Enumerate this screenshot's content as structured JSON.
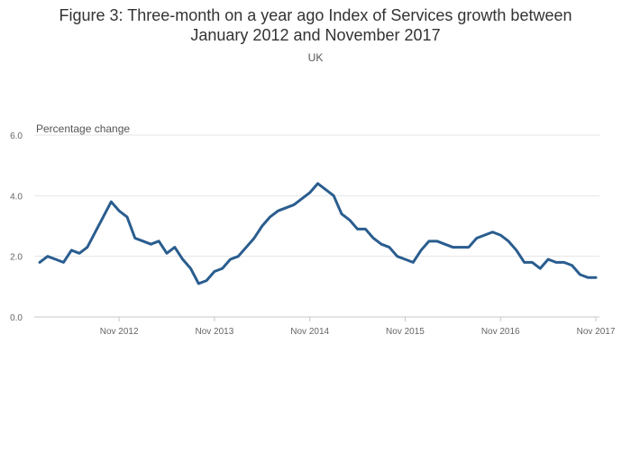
{
  "chart_data": {
    "type": "line",
    "title_lines": [
      "Figure 3: Three-month on a year ago Index of Services growth between",
      "January 2012 and November 2017"
    ],
    "subtitle": "UK",
    "ylabel": "Percentage change",
    "xlabel": "",
    "ylim": [
      0,
      6
    ],
    "y_ticks": [
      "0.0",
      "2.0",
      "4.0",
      "6.0"
    ],
    "y_tick_values": [
      0,
      2,
      4,
      6
    ],
    "x_tick_labels": [
      "Nov 2012",
      "Nov 2013",
      "Nov 2014",
      "Nov 2015",
      "Nov 2016",
      "Nov 2017"
    ],
    "x_tick_index": [
      10,
      22,
      34,
      46,
      58,
      70
    ],
    "grid": true,
    "line_color": "#2a5d8f",
    "series": [
      {
        "name": "Three-month on a year ago growth",
        "start": "Jan 2012",
        "frequency": "monthly",
        "values": [
          1.8,
          2.0,
          1.9,
          1.8,
          2.2,
          2.1,
          2.3,
          2.8,
          3.3,
          3.8,
          3.5,
          3.3,
          2.6,
          2.5,
          2.4,
          2.5,
          2.1,
          2.3,
          1.9,
          1.6,
          1.1,
          1.2,
          1.5,
          1.6,
          1.9,
          2.0,
          2.3,
          2.6,
          3.0,
          3.3,
          3.5,
          3.6,
          3.7,
          3.9,
          4.1,
          4.4,
          4.2,
          4.0,
          3.4,
          3.2,
          2.9,
          2.9,
          2.6,
          2.4,
          2.3,
          2.0,
          1.9,
          1.8,
          2.2,
          2.5,
          2.5,
          2.4,
          2.3,
          2.3,
          2.3,
          2.6,
          2.7,
          2.8,
          2.7,
          2.5,
          2.2,
          1.8,
          1.8,
          1.6,
          1.9,
          1.8,
          1.8,
          1.7,
          1.4,
          1.3,
          1.3
        ]
      }
    ]
  }
}
